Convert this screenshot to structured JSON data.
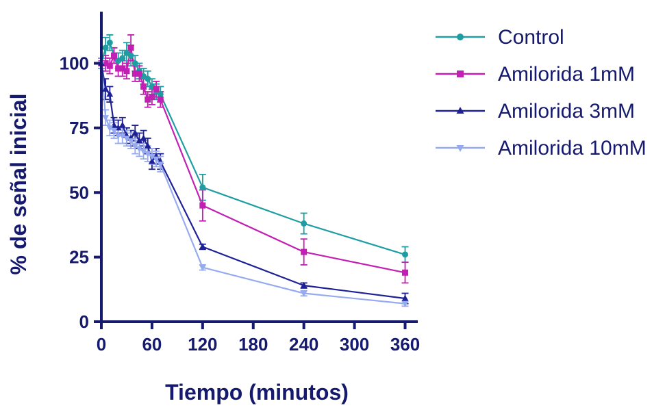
{
  "chart_data": {
    "type": "line",
    "title": "",
    "xlabel": "Tiempo (minutos)",
    "ylabel": "% de señal inicial",
    "xlim": [
      0,
      375
    ],
    "ylim": [
      0,
      120
    ],
    "xticks": [
      0,
      60,
      120,
      180,
      240,
      300,
      360
    ],
    "yticks": [
      0,
      25,
      50,
      75,
      100
    ],
    "xtick_labels": [
      "0",
      "60",
      "120",
      "180",
      "240",
      "300",
      "360"
    ],
    "ytick_labels": [
      "0",
      "25",
      "50",
      "75",
      "100"
    ],
    "grid": false,
    "legend_position": "top-right",
    "series": [
      {
        "name": "Control",
        "color": "#1e9ea3",
        "marker": "circle",
        "x": [
          0,
          5,
          10,
          15,
          20,
          25,
          30,
          35,
          40,
          45,
          50,
          55,
          60,
          65,
          70,
          120,
          240,
          360
        ],
        "y": [
          100,
          106,
          108,
          103,
          101,
          102,
          104,
          103,
          100,
          97,
          95,
          94,
          91,
          89,
          88,
          52,
          38,
          26
        ],
        "error": [
          2,
          4,
          3,
          3,
          3,
          3,
          4,
          4,
          3,
          3,
          3,
          3,
          3,
          3,
          3,
          5,
          4,
          3
        ]
      },
      {
        "name": "Amilorida 1mM",
        "color": "#c21fb3",
        "marker": "square",
        "x": [
          0,
          5,
          10,
          15,
          20,
          25,
          30,
          35,
          40,
          45,
          50,
          55,
          60,
          65,
          70,
          120,
          240,
          360
        ],
        "y": [
          100,
          100,
          99,
          103,
          98,
          98,
          97,
          106,
          96,
          96,
          91,
          86,
          87,
          90,
          86,
          45,
          27,
          19
        ],
        "error": [
          2,
          3,
          3,
          3,
          3,
          3,
          3,
          5,
          3,
          3,
          3,
          3,
          3,
          3,
          3,
          6,
          5,
          4
        ]
      },
      {
        "name": "Amilorida 3mM",
        "color": "#1e2096",
        "marker": "triangle-up",
        "x": [
          0,
          5,
          10,
          15,
          20,
          25,
          30,
          35,
          40,
          45,
          50,
          55,
          60,
          65,
          70,
          120,
          240,
          360
        ],
        "y": [
          100,
          90,
          88,
          76,
          75,
          76,
          72,
          71,
          73,
          70,
          71,
          68,
          62,
          64,
          62,
          29,
          14,
          9
        ],
        "error": [
          2,
          4,
          3,
          3,
          3,
          3,
          3,
          3,
          3,
          3,
          3,
          3,
          3,
          3,
          3,
          1,
          1,
          2
        ]
      },
      {
        "name": "Amilorida 10mM",
        "color": "#96aaf0",
        "marker": "triangle-down",
        "x": [
          0,
          5,
          10,
          15,
          20,
          25,
          30,
          35,
          40,
          45,
          50,
          55,
          60,
          65,
          70,
          120,
          240,
          360
        ],
        "y": [
          100,
          79,
          75,
          74,
          72,
          72,
          71,
          70,
          68,
          67,
          66,
          65,
          64,
          63,
          61,
          21,
          11,
          7
        ],
        "error": [
          2,
          3,
          3,
          3,
          3,
          3,
          3,
          3,
          3,
          3,
          3,
          3,
          3,
          3,
          3,
          1,
          1,
          1
        ]
      }
    ]
  }
}
